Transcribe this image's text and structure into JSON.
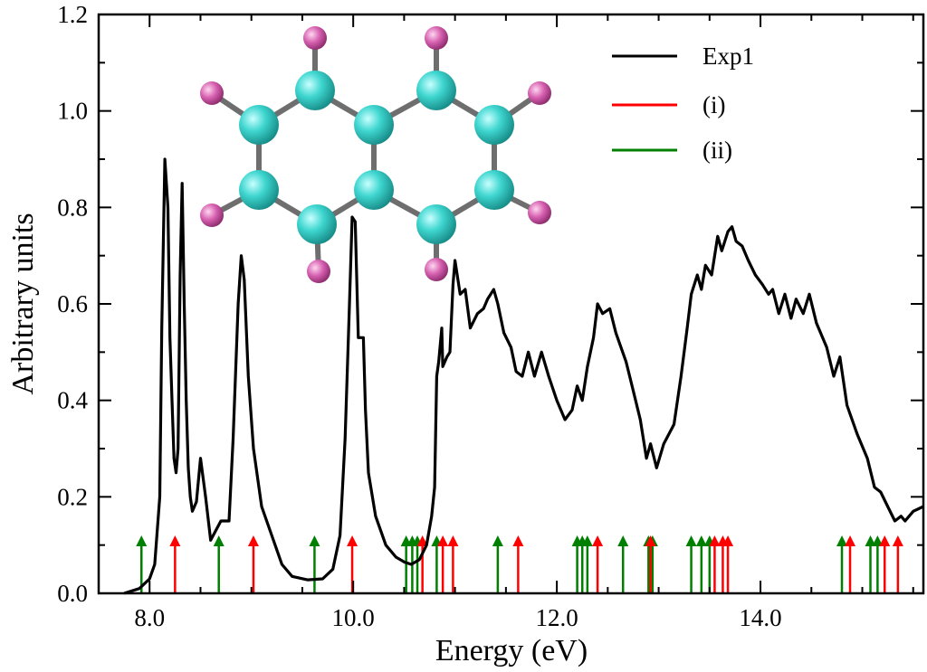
{
  "chart_data": {
    "type": "line",
    "xlabel": "Energy (eV)",
    "ylabel": "Arbitrary units",
    "xlim": [
      7.5,
      15.6
    ],
    "ylim": [
      0.0,
      1.2
    ],
    "x_ticks": [
      8.0,
      10.0,
      12.0,
      14.0
    ],
    "x_tick_labels": [
      "8.0",
      "10.0",
      "12.0",
      "14.0"
    ],
    "y_ticks": [
      0.0,
      0.2,
      0.4,
      0.6,
      0.8,
      1.0,
      1.2
    ],
    "y_tick_labels": [
      "0.0",
      "0.2",
      "0.4",
      "0.6",
      "0.8",
      "1.0",
      "1.2"
    ],
    "grid": false,
    "legend_position": "top-right",
    "colors": {
      "exp": "#000000",
      "i": "#ff0000",
      "ii": "#008000",
      "carbon": "#3fd6d0",
      "hydrogen": "#d660b0",
      "bond": "#6e6e6e"
    },
    "series": [
      {
        "name": "Exp1",
        "color": "#000000",
        "points": [
          [
            7.75,
            0.0
          ],
          [
            7.9,
            0.01
          ],
          [
            8.0,
            0.03
          ],
          [
            8.05,
            0.06
          ],
          [
            8.1,
            0.2
          ],
          [
            8.12,
            0.55
          ],
          [
            8.15,
            0.9
          ],
          [
            8.18,
            0.8
          ],
          [
            8.2,
            0.53
          ],
          [
            8.22,
            0.4
          ],
          [
            8.24,
            0.28
          ],
          [
            8.26,
            0.25
          ],
          [
            8.28,
            0.3
          ],
          [
            8.3,
            0.66
          ],
          [
            8.32,
            0.85
          ],
          [
            8.34,
            0.6
          ],
          [
            8.36,
            0.4
          ],
          [
            8.38,
            0.26
          ],
          [
            8.4,
            0.2
          ],
          [
            8.42,
            0.17
          ],
          [
            8.46,
            0.19
          ],
          [
            8.5,
            0.28
          ],
          [
            8.55,
            0.2
          ],
          [
            8.6,
            0.11
          ],
          [
            8.65,
            0.13
          ],
          [
            8.7,
            0.15
          ],
          [
            8.78,
            0.15
          ],
          [
            8.82,
            0.32
          ],
          [
            8.87,
            0.6
          ],
          [
            8.9,
            0.7
          ],
          [
            8.93,
            0.65
          ],
          [
            8.97,
            0.45
          ],
          [
            9.02,
            0.3
          ],
          [
            9.1,
            0.18
          ],
          [
            9.2,
            0.12
          ],
          [
            9.3,
            0.06
          ],
          [
            9.4,
            0.035
          ],
          [
            9.55,
            0.028
          ],
          [
            9.7,
            0.03
          ],
          [
            9.8,
            0.05
          ],
          [
            9.87,
            0.12
          ],
          [
            9.92,
            0.32
          ],
          [
            9.96,
            0.58
          ],
          [
            9.99,
            0.78
          ],
          [
            10.02,
            0.77
          ],
          [
            10.05,
            0.53
          ],
          [
            10.1,
            0.53
          ],
          [
            10.12,
            0.38
          ],
          [
            10.15,
            0.25
          ],
          [
            10.22,
            0.16
          ],
          [
            10.32,
            0.1
          ],
          [
            10.42,
            0.075
          ],
          [
            10.5,
            0.065
          ],
          [
            10.57,
            0.06
          ],
          [
            10.65,
            0.07
          ],
          [
            10.72,
            0.1
          ],
          [
            10.77,
            0.16
          ],
          [
            10.8,
            0.22
          ],
          [
            10.82,
            0.45
          ],
          [
            10.84,
            0.48
          ],
          [
            10.87,
            0.55
          ],
          [
            10.88,
            0.47
          ],
          [
            10.92,
            0.49
          ],
          [
            10.95,
            0.5
          ],
          [
            10.98,
            0.64
          ],
          [
            11.0,
            0.69
          ],
          [
            11.05,
            0.62
          ],
          [
            11.1,
            0.63
          ],
          [
            11.15,
            0.55
          ],
          [
            11.22,
            0.58
          ],
          [
            11.28,
            0.59
          ],
          [
            11.32,
            0.61
          ],
          [
            11.38,
            0.63
          ],
          [
            11.42,
            0.6
          ],
          [
            11.48,
            0.54
          ],
          [
            11.55,
            0.51
          ],
          [
            11.6,
            0.46
          ],
          [
            11.66,
            0.45
          ],
          [
            11.72,
            0.5
          ],
          [
            11.78,
            0.45
          ],
          [
            11.85,
            0.5
          ],
          [
            11.92,
            0.45
          ],
          [
            12.0,
            0.4
          ],
          [
            12.08,
            0.36
          ],
          [
            12.15,
            0.38
          ],
          [
            12.2,
            0.43
          ],
          [
            12.25,
            0.4
          ],
          [
            12.3,
            0.47
          ],
          [
            12.36,
            0.53
          ],
          [
            12.4,
            0.6
          ],
          [
            12.45,
            0.58
          ],
          [
            12.52,
            0.59
          ],
          [
            12.58,
            0.54
          ],
          [
            12.68,
            0.48
          ],
          [
            12.75,
            0.42
          ],
          [
            12.82,
            0.36
          ],
          [
            12.88,
            0.28
          ],
          [
            12.92,
            0.31
          ],
          [
            12.98,
            0.26
          ],
          [
            13.05,
            0.31
          ],
          [
            13.15,
            0.35
          ],
          [
            13.22,
            0.45
          ],
          [
            13.28,
            0.55
          ],
          [
            13.32,
            0.62
          ],
          [
            13.38,
            0.66
          ],
          [
            13.42,
            0.63
          ],
          [
            13.46,
            0.68
          ],
          [
            13.52,
            0.66
          ],
          [
            13.58,
            0.74
          ],
          [
            13.62,
            0.71
          ],
          [
            13.68,
            0.75
          ],
          [
            13.72,
            0.76
          ],
          [
            13.76,
            0.73
          ],
          [
            13.82,
            0.72
          ],
          [
            13.88,
            0.69
          ],
          [
            13.95,
            0.66
          ],
          [
            14.02,
            0.64
          ],
          [
            14.08,
            0.62
          ],
          [
            14.12,
            0.63
          ],
          [
            14.18,
            0.58
          ],
          [
            14.24,
            0.62
          ],
          [
            14.3,
            0.57
          ],
          [
            14.35,
            0.61
          ],
          [
            14.42,
            0.58
          ],
          [
            14.48,
            0.62
          ],
          [
            14.55,
            0.56
          ],
          [
            14.65,
            0.51
          ],
          [
            14.72,
            0.45
          ],
          [
            14.78,
            0.49
          ],
          [
            14.85,
            0.39
          ],
          [
            14.95,
            0.33
          ],
          [
            15.05,
            0.28
          ],
          [
            15.12,
            0.22
          ],
          [
            15.18,
            0.21
          ],
          [
            15.25,
            0.18
          ],
          [
            15.32,
            0.15
          ],
          [
            15.38,
            0.16
          ],
          [
            15.42,
            0.15
          ],
          [
            15.5,
            0.17
          ],
          [
            15.6,
            0.18
          ]
        ]
      },
      {
        "name": "(i)",
        "color": "#ff0000",
        "marker": "arrow",
        "x": [
          8.25,
          9.02,
          9.99,
          10.68,
          10.88,
          10.98,
          11.62,
          12.4,
          12.92,
          13.55,
          13.63,
          13.68,
          14.88,
          15.22,
          15.35
        ]
      },
      {
        "name": "(ii)",
        "color": "#008000",
        "marker": "arrow",
        "x": [
          7.92,
          8.68,
          9.62,
          10.52,
          10.58,
          10.63,
          10.82,
          11.42,
          12.2,
          12.25,
          12.3,
          12.65,
          12.9,
          12.94,
          13.32,
          13.42,
          13.5,
          14.8,
          15.08,
          15.15
        ]
      }
    ],
    "arrow_height": 0.12
  }
}
